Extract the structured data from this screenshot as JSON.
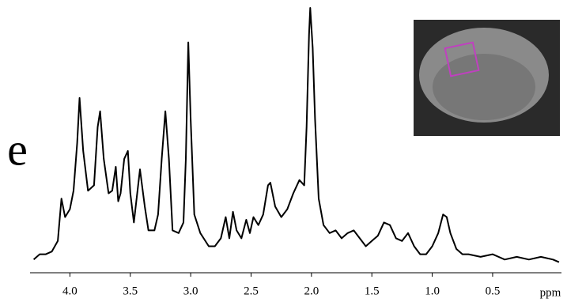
{
  "chart_data": {
    "type": "line",
    "panel_label": "e",
    "x_label": "ppm",
    "xlim": [
      4.33,
      -0.07
    ],
    "ylim": [
      0,
      100
    ],
    "xticks": [
      {
        "value": 4.0,
        "label": "4.0"
      },
      {
        "value": 3.5,
        "label": "3.5"
      },
      {
        "value": 3.0,
        "label": "3.0"
      },
      {
        "value": 2.5,
        "label": "2.5"
      },
      {
        "value": 2.0,
        "label": "2.0"
      },
      {
        "value": 1.5,
        "label": "1.5"
      },
      {
        "value": 1.0,
        "label": "1.0"
      },
      {
        "value": 0.5,
        "label": "0.5"
      }
    ],
    "x": [
      4.3,
      4.25,
      4.2,
      4.15,
      4.1,
      4.07,
      4.04,
      4.0,
      3.97,
      3.94,
      3.92,
      3.89,
      3.85,
      3.8,
      3.77,
      3.75,
      3.72,
      3.68,
      3.65,
      3.62,
      3.6,
      3.58,
      3.55,
      3.52,
      3.5,
      3.47,
      3.44,
      3.42,
      3.38,
      3.35,
      3.3,
      3.27,
      3.24,
      3.21,
      3.18,
      3.15,
      3.1,
      3.06,
      3.04,
      3.02,
      3.0,
      2.97,
      2.92,
      2.85,
      2.8,
      2.75,
      2.71,
      2.68,
      2.65,
      2.62,
      2.58,
      2.54,
      2.51,
      2.48,
      2.44,
      2.4,
      2.36,
      2.34,
      2.3,
      2.25,
      2.2,
      2.15,
      2.1,
      2.06,
      2.04,
      2.02,
      2.01,
      1.99,
      1.97,
      1.94,
      1.9,
      1.85,
      1.8,
      1.75,
      1.7,
      1.65,
      1.6,
      1.55,
      1.5,
      1.45,
      1.4,
      1.35,
      1.3,
      1.25,
      1.2,
      1.15,
      1.1,
      1.05,
      1.0,
      0.95,
      0.91,
      0.88,
      0.85,
      0.8,
      0.75,
      0.7,
      0.6,
      0.5,
      0.4,
      0.3,
      0.2,
      0.1,
      0.0,
      -0.05
    ],
    "series": [
      {
        "color": "#000000",
        "values": [
          5,
          7,
          7,
          8,
          12,
          28,
          21,
          24,
          31,
          49,
          66,
          46,
          31,
          33,
          55,
          61,
          43,
          30,
          31,
          40,
          27,
          30,
          43,
          46,
          30,
          19,
          31,
          39,
          25,
          16,
          16,
          22,
          43,
          61,
          43,
          16,
          15,
          19,
          43,
          87,
          58,
          22,
          15,
          10,
          10,
          13,
          21,
          13,
          23,
          16,
          13,
          20,
          15,
          21,
          18,
          22,
          33,
          34,
          25,
          21,
          24,
          30,
          35,
          33,
          55,
          90,
          100,
          85,
          58,
          28,
          18,
          15,
          16,
          13,
          15,
          16,
          13,
          10,
          12,
          14,
          19,
          18,
          13,
          12,
          15,
          10,
          7,
          7,
          10,
          15,
          22,
          21,
          15,
          9,
          7,
          7,
          6,
          7,
          5,
          6,
          5,
          6,
          5,
          4
        ]
      }
    ]
  }
}
